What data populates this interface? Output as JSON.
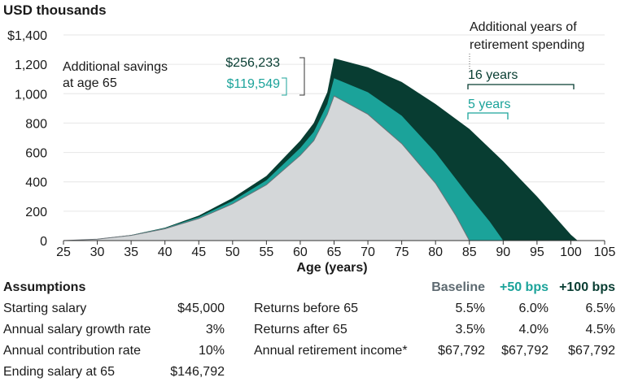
{
  "chart_data": {
    "type": "area",
    "title": "USD thousands",
    "xlabel": "Age (years)",
    "ylabel": "USD thousands",
    "xlim": [
      25,
      105
    ],
    "ylim": [
      0,
      1400
    ],
    "x_ticks": [
      "25",
      "30",
      "35",
      "40",
      "45",
      "50",
      "55",
      "60",
      "65",
      "70",
      "75",
      "80",
      "85",
      "90",
      "95",
      "100",
      "105"
    ],
    "y_ticks": [
      "$1,400",
      "1,200",
      "1,000",
      "800",
      "600",
      "400",
      "200",
      "0"
    ],
    "series": [
      {
        "name": "Baseline",
        "color": "#d4d7d9",
        "points": [
          [
            25,
            0
          ],
          [
            30,
            10
          ],
          [
            35,
            35
          ],
          [
            40,
            80
          ],
          [
            45,
            150
          ],
          [
            50,
            250
          ],
          [
            55,
            380
          ],
          [
            60,
            580
          ],
          [
            62,
            680
          ],
          [
            64,
            860
          ],
          [
            65,
            985
          ],
          [
            70,
            860
          ],
          [
            75,
            660
          ],
          [
            80,
            390
          ],
          [
            83,
            170
          ],
          [
            85,
            0
          ]
        ]
      },
      {
        "name": "+50 bps",
        "color": "#1ba39a",
        "points": [
          [
            25,
            0
          ],
          [
            30,
            10
          ],
          [
            35,
            37
          ],
          [
            40,
            85
          ],
          [
            45,
            160
          ],
          [
            50,
            270
          ],
          [
            55,
            410
          ],
          [
            60,
            630
          ],
          [
            62,
            740
          ],
          [
            64,
            930
          ],
          [
            65,
            1105
          ],
          [
            70,
            1010
          ],
          [
            75,
            850
          ],
          [
            80,
            600
          ],
          [
            85,
            300
          ],
          [
            88,
            130
          ],
          [
            90,
            0
          ]
        ]
      },
      {
        "name": "+100 bps",
        "color": "#083d32",
        "points": [
          [
            25,
            0
          ],
          [
            30,
            11
          ],
          [
            35,
            38
          ],
          [
            40,
            88
          ],
          [
            45,
            170
          ],
          [
            50,
            290
          ],
          [
            55,
            440
          ],
          [
            60,
            680
          ],
          [
            62,
            800
          ],
          [
            64,
            1010
          ],
          [
            65,
            1241
          ],
          [
            70,
            1180
          ],
          [
            75,
            1080
          ],
          [
            80,
            930
          ],
          [
            85,
            760
          ],
          [
            90,
            540
          ],
          [
            95,
            300
          ],
          [
            100,
            40
          ],
          [
            101,
            0
          ]
        ]
      }
    ],
    "annotations": {
      "savings_label": "Additional savings at age 65",
      "savings_line1": "Additional savings",
      "savings_line2": "at age 65",
      "savings_100": "$256,233",
      "savings_50": "$119,549",
      "years_title_line1": "Additional years of",
      "years_title_line2": "retirement spending",
      "years_100": "16 years",
      "years_50": "5 years"
    }
  },
  "table": {
    "assumptions_title": "Assumptions",
    "headers": [
      "Baseline",
      "+50 bps",
      "+100 bps"
    ],
    "left_rows": [
      {
        "label": "Starting salary",
        "value": "$45,000"
      },
      {
        "label": "Annual salary growth rate",
        "value": "3%"
      },
      {
        "label": "Annual contribution rate",
        "value": "10%"
      },
      {
        "label": "Ending salary at 65",
        "value": "$146,792"
      }
    ],
    "right_rows": [
      {
        "label": "Returns before 65",
        "values": [
          "5.5%",
          "6.0%",
          "6.5%"
        ]
      },
      {
        "label": "Returns after 65",
        "values": [
          "3.5%",
          "4.0%",
          "4.5%"
        ]
      },
      {
        "label": "Annual retirement income*",
        "values": [
          "$67,792",
          "$67,792",
          "$67,792"
        ]
      }
    ]
  },
  "colors": {
    "baseline": "#d4d7d9",
    "baseline_text": "#5e6a71",
    "plus50": "#1ba39a",
    "plus100": "#083d32",
    "axis": "#333333"
  }
}
